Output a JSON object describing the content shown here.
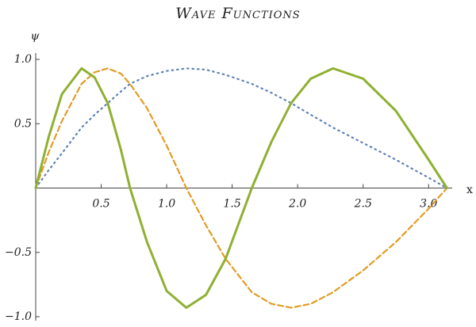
{
  "chart_data": {
    "type": "line",
    "title": "Wave Functions",
    "x_label": "x",
    "y_label": "ψ",
    "x": [
      0,
      0.1,
      0.2,
      0.35,
      0.45,
      0.55,
      0.65,
      0.72,
      0.85,
      1.0,
      1.15,
      1.3,
      1.45,
      1.65,
      1.8,
      1.95,
      2.1,
      2.27,
      2.5,
      2.75,
      3.0,
      3.14
    ],
    "series": [
      {
        "color": "#5e81b5",
        "style": "dotted",
        "values": [
          0,
          0.14,
          0.27,
          0.47,
          0.57,
          0.66,
          0.75,
          0.81,
          0.87,
          0.91,
          0.93,
          0.92,
          0.88,
          0.81,
          0.74,
          0.66,
          0.57,
          0.47,
          0.35,
          0.22,
          0.08,
          0
        ]
      },
      {
        "color": "#e19c24",
        "style": "dashed",
        "values": [
          0,
          0.28,
          0.52,
          0.81,
          0.9,
          0.93,
          0.89,
          0.81,
          0.62,
          0.33,
          0,
          -0.29,
          -0.55,
          -0.81,
          -0.9,
          -0.93,
          -0.9,
          -0.81,
          -0.64,
          -0.42,
          -0.16,
          0
        ]
      },
      {
        "color": "#8fb032",
        "style": "solid",
        "values": [
          0,
          0.4,
          0.73,
          0.93,
          0.86,
          0.66,
          0.3,
          0,
          -0.42,
          -0.8,
          -0.93,
          -0.83,
          -0.55,
          0,
          0.36,
          0.66,
          0.85,
          0.93,
          0.85,
          0.6,
          0.22,
          0
        ]
      }
    ],
    "xlim": [
      0,
      3.18
    ],
    "ylim": [
      -1.0,
      1.0
    ],
    "xticks": [
      0.5,
      {
        "value": 1,
        "label": "1.0"
      },
      1.5,
      {
        "value": 2,
        "label": "2.0"
      },
      2.5,
      {
        "value": 3,
        "label": "3.0"
      }
    ],
    "yticks": [
      {
        "value": 1,
        "label": "1.0"
      },
      0.5,
      {
        "value": -0.5,
        "label": "−0.5"
      },
      {
        "value": -1,
        "label": "−1.0"
      }
    ]
  }
}
